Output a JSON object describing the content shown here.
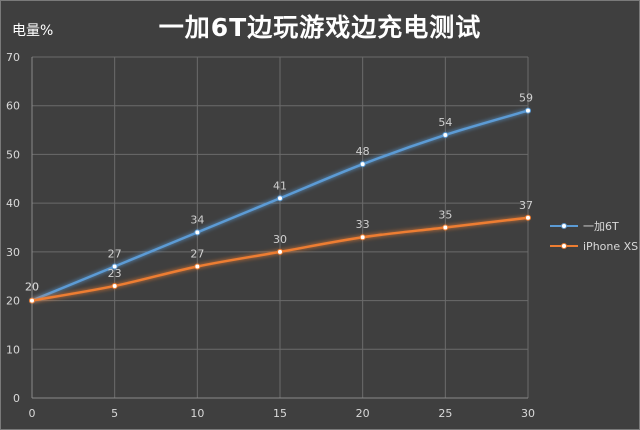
{
  "chart_data": {
    "type": "line",
    "title": "一加6T边玩游戏边充电测试",
    "ylabel": "电量%",
    "xlabel": "",
    "x": [
      0,
      5,
      10,
      15,
      20,
      25,
      30
    ],
    "xlim": [
      0,
      30
    ],
    "ylim": [
      0,
      70
    ],
    "yticks": [
      0,
      10,
      20,
      30,
      40,
      50,
      60,
      70
    ],
    "grid": true,
    "legend": "right",
    "series": [
      {
        "name": "一加6T",
        "values": [
          20,
          27,
          34,
          41,
          48,
          54,
          59
        ],
        "color": "#5b9bd5"
      },
      {
        "name": "iPhone XS",
        "values": [
          20,
          23,
          27,
          30,
          33,
          35,
          37
        ],
        "color": "#ed7d31"
      }
    ]
  }
}
